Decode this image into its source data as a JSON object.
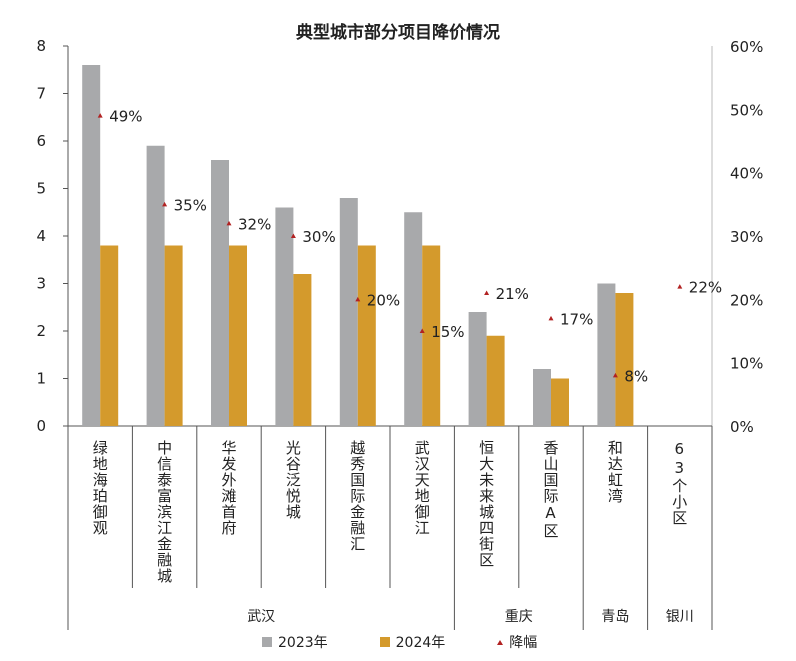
{
  "chart_data": {
    "type": "bar",
    "title": "典型城市部分项目降价情况",
    "categories": [
      "绿地海珀御观",
      "中信泰富滨江金融城",
      "华发外滩首府",
      "光谷泛悦城",
      "越秀国际金融汇",
      "武汉天地御江",
      "恒大未来城四街区",
      "香山国际A区",
      "和达虹湾",
      "63个小区"
    ],
    "groups": [
      {
        "name": "武汉",
        "count": 6
      },
      {
        "name": "重庆",
        "count": 2
      },
      {
        "name": "青岛",
        "count": 1
      },
      {
        "name": "银川",
        "count": 1
      }
    ],
    "series": [
      {
        "name": "2023年",
        "axis": "left",
        "color": "#a8a9ab",
        "values": [
          7.6,
          5.9,
          5.6,
          4.6,
          4.8,
          4.5,
          2.4,
          1.2,
          3.0,
          null
        ]
      },
      {
        "name": "2024年",
        "axis": "left",
        "color": "#d49a2c",
        "values": [
          3.8,
          3.8,
          3.8,
          3.2,
          3.8,
          3.8,
          1.9,
          1.0,
          2.8,
          null
        ]
      },
      {
        "name": "降幅",
        "axis": "right",
        "type": "marker",
        "color": "#b22222",
        "values": [
          49,
          35,
          32,
          30,
          20,
          15,
          21,
          17,
          8,
          22
        ],
        "labels": [
          "49%",
          "35%",
          "32%",
          "30%",
          "20%",
          "15%",
          "21%",
          "17%",
          "8%",
          "22%"
        ]
      }
    ],
    "ylim": [
      0,
      8
    ],
    "yticks": [
      "0",
      "1",
      "2",
      "3",
      "4",
      "5",
      "6",
      "7",
      "8"
    ],
    "y2lim": [
      0,
      60
    ],
    "y2ticks": [
      "0%",
      "10%",
      "20%",
      "30%",
      "40%",
      "50%",
      "60%"
    ],
    "grid": false,
    "legend": "bottom"
  }
}
